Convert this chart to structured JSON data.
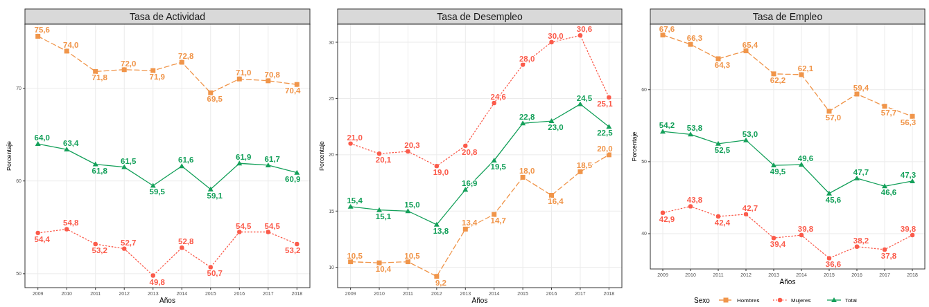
{
  "chart_data": [
    {
      "type": "line",
      "title": "Tasa de Actividad",
      "xlabel": "Años",
      "ylabel": "Porcentaje",
      "categories": [
        "2009",
        "2010",
        "2011",
        "2012",
        "2013",
        "2014",
        "2015",
        "2016",
        "2017",
        "2018"
      ],
      "ylim": [
        48.5,
        76.9
      ],
      "yticks": [
        50,
        60,
        70
      ],
      "grid": true,
      "legend": false,
      "series": [
        {
          "color": "#f0954a",
          "marker": "square",
          "line_style": "dashed",
          "values": [
            75.6,
            74.0,
            71.8,
            72.0,
            71.9,
            72.8,
            69.5,
            71.0,
            70.8,
            70.4
          ],
          "value_labels": [
            "75,6",
            "74,0",
            "71,8",
            "72,0",
            "71,9",
            "72,8",
            "69,5",
            "71,0",
            "70,8",
            "70,4"
          ]
        },
        {
          "color": "#fb5b4b",
          "marker": "circle",
          "line_style": "dotted",
          "values": [
            54.4,
            54.8,
            53.2,
            52.7,
            49.8,
            52.8,
            50.7,
            54.5,
            54.5,
            53.2
          ],
          "value_labels": [
            "54,4",
            "54,8",
            "53,2",
            "52,7",
            "49,8",
            "52,8",
            "50,7",
            "54,5",
            "54,5",
            "53,2"
          ]
        },
        {
          "color": "#14a05a",
          "marker": "triangle",
          "line_style": "solid",
          "values": [
            64.0,
            63.4,
            61.8,
            61.5,
            59.5,
            61.6,
            59.1,
            61.9,
            61.7,
            60.9
          ],
          "value_labels": [
            "64,0",
            "63,4",
            "61,8",
            "61,5",
            "59,5",
            "61,6",
            "59,1",
            "61,9",
            "61,7",
            "60,9"
          ]
        }
      ]
    },
    {
      "type": "line",
      "title": "Tasa de Desempleo",
      "xlabel": "Años",
      "ylabel": "Porcentaje",
      "categories": [
        "2009",
        "2010",
        "2011",
        "2012",
        "2013",
        "2014",
        "2015",
        "2016",
        "2017",
        "2018"
      ],
      "ylim": [
        8.2,
        31.6
      ],
      "yticks": [
        10,
        15,
        20,
        25,
        30
      ],
      "grid": true,
      "legend": false,
      "series": [
        {
          "color": "#f0954a",
          "marker": "square",
          "line_style": "dashed",
          "values": [
            10.5,
            10.4,
            10.5,
            9.2,
            13.4,
            14.7,
            18.0,
            16.4,
            18.5,
            20.0
          ],
          "value_labels": [
            "10,5",
            "10,4",
            "10,5",
            "9,2",
            "13,4",
            "14,7",
            "18,0",
            "16,4",
            "18,5",
            "20,0"
          ]
        },
        {
          "color": "#fb5b4b",
          "marker": "circle",
          "line_style": "dotted",
          "values": [
            21.0,
            20.1,
            20.3,
            19.0,
            20.8,
            24.6,
            28.0,
            30.0,
            30.6,
            25.1
          ],
          "value_labels": [
            "21,0",
            "20,1",
            "20,3",
            "19,0",
            "20,8",
            "24,6",
            "28,0",
            "30,0",
            "30,6",
            "25,1"
          ]
        },
        {
          "color": "#14a05a",
          "marker": "triangle",
          "line_style": "solid",
          "values": [
            15.4,
            15.1,
            15.0,
            13.8,
            16.9,
            19.5,
            22.8,
            23.0,
            24.5,
            22.5
          ],
          "value_labels": [
            "15,4",
            "15,1",
            "15,0",
            "13,8",
            "16,9",
            "19,5",
            "22,8",
            "23,0",
            "24,5",
            "22,5"
          ]
        }
      ]
    },
    {
      "type": "line",
      "title": "Tasa de Empleo",
      "xlabel": "Años",
      "ylabel": "Porcentaje",
      "legend_title": "Sexo",
      "categories": [
        "2009",
        "2010",
        "2011",
        "2012",
        "2013",
        "2014",
        "2015",
        "2016",
        "2017",
        "2018"
      ],
      "ylim": [
        35.1,
        69.1
      ],
      "yticks": [
        40,
        50,
        60
      ],
      "grid": true,
      "legend": "bottom",
      "series": [
        {
          "name": "Hombres",
          "color": "#f0954a",
          "marker": "square",
          "line_style": "dashed",
          "values": [
            67.6,
            66.3,
            64.3,
            65.4,
            62.2,
            62.1,
            57.0,
            59.4,
            57.7,
            56.3
          ],
          "value_labels": [
            "67,6",
            "66,3",
            "64,3",
            "65,4",
            "62,2",
            "62,1",
            "57,0",
            "59,4",
            "57,7",
            "56,3"
          ]
        },
        {
          "name": "Mujeres",
          "color": "#fb5b4b",
          "marker": "circle",
          "line_style": "dotted",
          "values": [
            42.9,
            43.8,
            42.4,
            42.7,
            39.4,
            39.8,
            36.6,
            38.2,
            37.8,
            39.8
          ],
          "value_labels": [
            "42,9",
            "43,8",
            "42,4",
            "42,7",
            "39,4",
            "39,8",
            "36,6",
            "38,2",
            "37,8",
            "39,8"
          ]
        },
        {
          "name": "Total",
          "color": "#14a05a",
          "marker": "triangle",
          "line_style": "solid",
          "values": [
            54.2,
            53.8,
            52.5,
            53.0,
            49.5,
            49.6,
            45.6,
            47.7,
            46.6,
            47.3
          ],
          "value_labels": [
            "54,2",
            "53,8",
            "52,5",
            "53,0",
            "49,5",
            "49,6",
            "45,6",
            "47,7",
            "46,6",
            "47,3"
          ]
        }
      ]
    }
  ]
}
